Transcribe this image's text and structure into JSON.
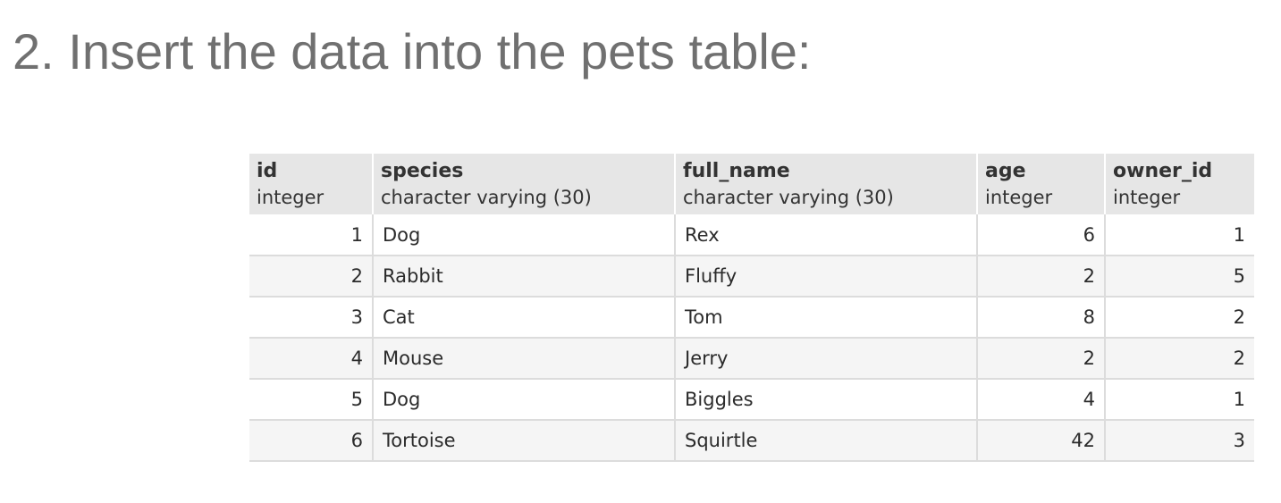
{
  "title": "2. Insert the data into the pets table:",
  "table": {
    "columns": [
      {
        "name": "id",
        "type": "integer"
      },
      {
        "name": "species",
        "type": "character varying (30)"
      },
      {
        "name": "full_name",
        "type": "character varying (30)"
      },
      {
        "name": "age",
        "type": "integer"
      },
      {
        "name": "owner_id",
        "type": "integer"
      }
    ],
    "rows": [
      [
        "1",
        "Dog",
        "Rex",
        "6",
        "1"
      ],
      [
        "2",
        "Rabbit",
        "Fluffy",
        "2",
        "5"
      ],
      [
        "3",
        "Cat",
        "Tom",
        "8",
        "2"
      ],
      [
        "4",
        "Mouse",
        "Jerry",
        "2",
        "2"
      ],
      [
        "5",
        "Dog",
        "Biggles",
        "4",
        "1"
      ],
      [
        "6",
        "Tortoise",
        "Squirtle",
        "42",
        "3"
      ]
    ]
  }
}
